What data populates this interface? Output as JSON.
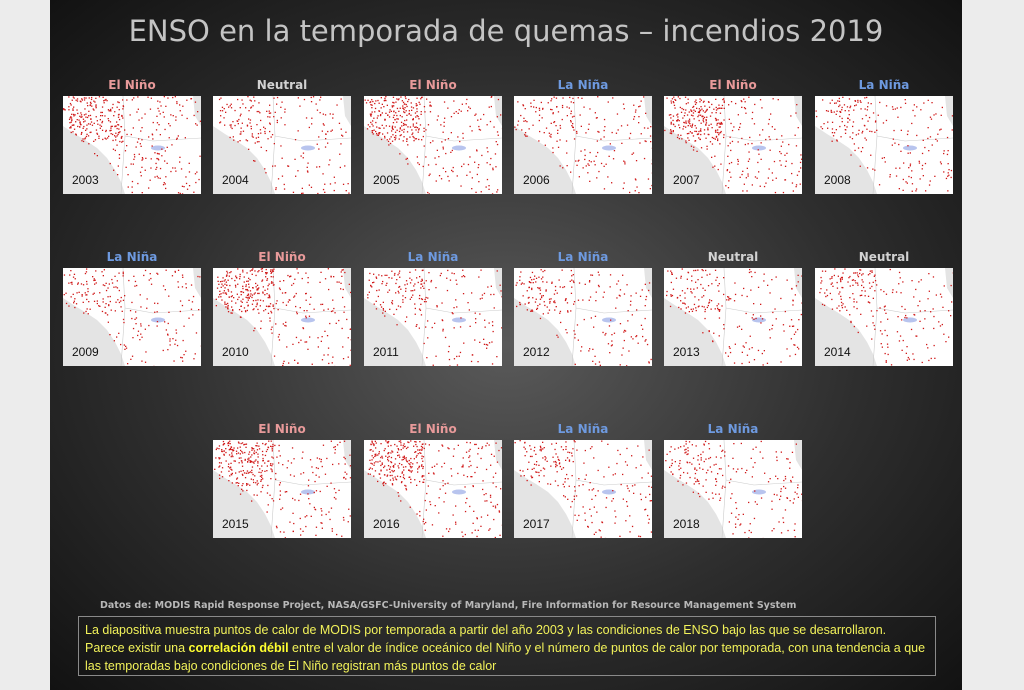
{
  "title": "ENSO en la temporada de quemas – incendios 2019",
  "panels": [
    {
      "phase": "El Niño",
      "year": "2003"
    },
    {
      "phase": "Neutral",
      "year": "2004"
    },
    {
      "phase": "El Niño",
      "year": "2005"
    },
    {
      "phase": "La Niña",
      "year": "2006"
    },
    {
      "phase": "El Niño",
      "year": "2007"
    },
    {
      "phase": "La Niña",
      "year": "2008"
    },
    {
      "phase": "La Niña",
      "year": "2009"
    },
    {
      "phase": "El Niño",
      "year": "2010"
    },
    {
      "phase": "La Niña",
      "year": "2011"
    },
    {
      "phase": "La Niña",
      "year": "2012"
    },
    {
      "phase": "Neutral",
      "year": "2013"
    },
    {
      "phase": "Neutral",
      "year": "2014"
    },
    {
      "phase": "El Niño",
      "year": "2015"
    },
    {
      "phase": "El Niño",
      "year": "2016"
    },
    {
      "phase": "La Niña",
      "year": "2017"
    },
    {
      "phase": "La Niña",
      "year": "2018"
    }
  ],
  "source": "Datos de:  MODIS Rapid Response Project, NASA/GSFC-University of Maryland, Fire Information for Resource Management System",
  "description": {
    "before": "La diapositiva muestra puntos de calor de MODIS por temporada a partir del año 2003 y las condiciones de ENSO bajo las que se desarrollaron.  Parece existir una ",
    "bold": "correlación débil",
    "after": " entre el valor de índice oceánico del Niño y el número de puntos de calor por temporada, con una tendencia a que las temporadas bajo condiciones de El Niño registran más puntos de calor"
  }
}
